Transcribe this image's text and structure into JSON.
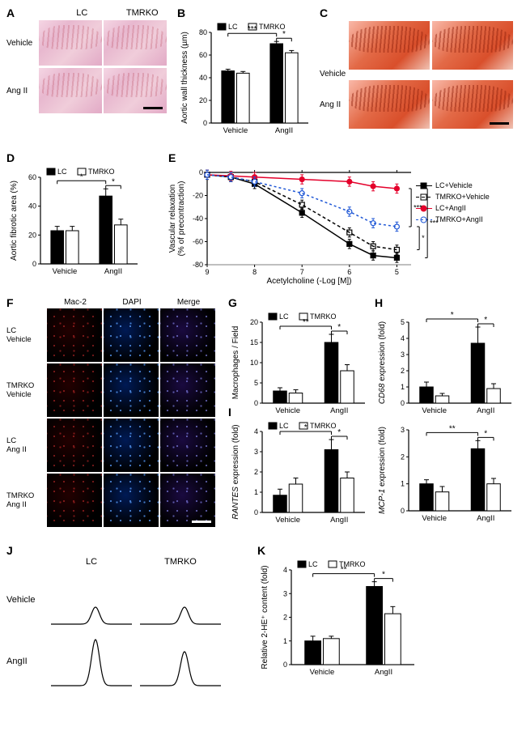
{
  "groups": {
    "lc": "LC",
    "tmrko": "TMRKO",
    "vehicle": "Vehicle",
    "angii": "AngII",
    "angii_sp": "Ang II"
  },
  "panelA": {
    "label": "A",
    "col1": "LC",
    "col2": "TMRKO",
    "row1": "Vehicle",
    "row2": "Ang II"
  },
  "panelB": {
    "label": "B",
    "ylabel": "Aortic wall thickness (µm)",
    "legend": {
      "lc": "LC",
      "tmrko": "TMRKO"
    },
    "xticks": [
      "Vehicle",
      "AngII"
    ],
    "ylim": [
      0,
      80
    ],
    "ytick_step": 20,
    "bars": {
      "lc_vehicle": 46,
      "lc_vehicle_err": 1.5,
      "tmrko_vehicle": 44,
      "tmrko_vehicle_err": 1.5,
      "lc_angii": 70,
      "lc_angii_err": 2,
      "tmrko_angii": 62,
      "tmrko_angii_err": 2
    },
    "sig": {
      "a": "***",
      "b": "*"
    },
    "colors": {
      "lc": "#000000",
      "tmrko": "#ffffff",
      "border": "#000000"
    }
  },
  "panelC": {
    "label": "C",
    "row1": "Vehicle",
    "row2": "Ang II"
  },
  "panelD": {
    "label": "D",
    "ylabel": "Aortic fibrotic area (%)",
    "legend": {
      "lc": "LC",
      "tmrko": "TMRKO"
    },
    "xticks": [
      "Vehicle",
      "AngII"
    ],
    "ylim": [
      0,
      60
    ],
    "ytick_step": 20,
    "bars": {
      "lc_vehicle": 23,
      "lc_vehicle_err": 3,
      "tmrko_vehicle": 23,
      "tmrko_vehicle_err": 3,
      "lc_angii": 47,
      "lc_angii_err": 5,
      "tmrko_angii": 27,
      "tmrko_angii_err": 4
    },
    "sig": {
      "a": "*",
      "b": "*"
    }
  },
  "panelE": {
    "label": "E",
    "ylabel": "Vascular relaxation\n(% of precontraction)",
    "xlabel": "Acetylcholine (-Log [M])",
    "xticks": [
      9,
      8,
      7,
      6,
      5
    ],
    "ylim": [
      0,
      -80
    ],
    "ytick_step": 20,
    "series": {
      "lc_vehicle": {
        "label": "LC+Vehicle",
        "color": "#000000",
        "dash": "none",
        "marker": "square-filled",
        "y": [
          -2,
          -4,
          -10,
          -35,
          -62,
          -72,
          -74
        ]
      },
      "tmrko_vehicle": {
        "label": "TMRKO+Vehicle",
        "color": "#000000",
        "dash": "4,3",
        "marker": "square-open",
        "y": [
          -2,
          -4,
          -8,
          -28,
          -52,
          -64,
          -67
        ]
      },
      "lc_angii": {
        "label": "LC+AngII",
        "color": "#e4002b",
        "dash": "none",
        "marker": "circle-filled",
        "y": [
          -2,
          -3,
          -4,
          -6,
          -8,
          -12,
          -14
        ]
      },
      "tmrko_angii": {
        "label": "TMRKO+AngII",
        "color": "#1f57d6",
        "dash": "3,3",
        "marker": "circle-open",
        "y": [
          -2,
          -4,
          -8,
          -18,
          -34,
          -44,
          -47
        ]
      }
    },
    "x": [
      9,
      8.5,
      8,
      7,
      6,
      5.5,
      5
    ],
    "err": 4,
    "sig": {
      "a": "***",
      "b": "***",
      "c": "*"
    }
  },
  "panelF": {
    "label": "F",
    "cols": [
      "Mac-2",
      "DAPI",
      "Merge"
    ],
    "rows": [
      "LC\nVehicle",
      "TMRKO\nVehicle",
      "LC\nAng II",
      "TMRKO\nAng II"
    ]
  },
  "panelG": {
    "label": "G",
    "ylabel": "Macrophages / Field",
    "xticks": [
      "Vehicle",
      "AngII"
    ],
    "legend": {
      "lc": "LC",
      "tmrko": "TMRKO"
    },
    "ylim": [
      0,
      20
    ],
    "ytick_step": 5,
    "bars": {
      "lc_vehicle": 3,
      "lc_vehicle_err": 0.8,
      "tmrko_vehicle": 2.5,
      "tmrko_vehicle_err": 0.8,
      "lc_angii": 15,
      "lc_angii_err": 2,
      "tmrko_angii": 8,
      "tmrko_angii_err": 1.5
    },
    "sig": {
      "a": "**",
      "b": "*"
    }
  },
  "panelH": {
    "label": "H",
    "ylabel": "CD68 expression (fold)",
    "ylabel_italic": "CD68",
    "xticks": [
      "Vehicle",
      "AngII"
    ],
    "ylim": [
      0,
      5
    ],
    "ytick_step": 1,
    "bars": {
      "lc_vehicle": 1.0,
      "lc_vehicle_err": 0.3,
      "tmrko_vehicle": 0.45,
      "tmrko_vehicle_err": 0.15,
      "lc_angii": 3.7,
      "lc_angii_err": 1.0,
      "tmrko_angii": 0.9,
      "tmrko_angii_err": 0.3
    },
    "sig": {
      "a": "*",
      "b": "*"
    }
  },
  "panelI_left": {
    "label": "I",
    "ylabel": "RANTES expression (fold)",
    "ylabel_italic": "RANTES",
    "xticks": [
      "Vehicle",
      "AngII"
    ],
    "legend": {
      "lc": "LC",
      "tmrko": "TMRKO"
    },
    "ylim": [
      0,
      4
    ],
    "ytick_step": 1,
    "bars": {
      "lc_vehicle": 0.85,
      "lc_vehicle_err": 0.3,
      "tmrko_vehicle": 1.4,
      "tmrko_vehicle_err": 0.3,
      "lc_angii": 3.1,
      "lc_angii_err": 0.5,
      "tmrko_angii": 1.7,
      "tmrko_angii_err": 0.3
    },
    "sig": {
      "a": "*",
      "b": "*"
    }
  },
  "panelI_right": {
    "ylabel": "MCP-1 expression (fold)",
    "ylabel_italic": "MCP-1",
    "xticks": [
      "Vehicle",
      "AngII"
    ],
    "ylim": [
      0,
      3
    ],
    "ytick_step": 1,
    "bars": {
      "lc_vehicle": 1.0,
      "lc_vehicle_err": 0.15,
      "tmrko_vehicle": 0.7,
      "tmrko_vehicle_err": 0.2,
      "lc_angii": 2.3,
      "lc_angii_err": 0.3,
      "tmrko_angii": 1.0,
      "tmrko_angii_err": 0.2
    },
    "sig": {
      "a": "**",
      "b": "*"
    }
  },
  "panelJ": {
    "label": "J",
    "cols": [
      "LC",
      "TMRKO"
    ],
    "rows": [
      "Vehicle",
      "AngII"
    ],
    "peaks": {
      "lc_vehicle": 0.35,
      "tmrko_vehicle": 0.35,
      "lc_angii": 0.95,
      "tmrko_angii": 0.7
    }
  },
  "panelK": {
    "label": "K",
    "ylabel": "Relative 2-HE⁺ content (fold)",
    "xticks": [
      "Vehicle",
      "AngII"
    ],
    "legend": {
      "lc": "LC",
      "tmrko": "TMRKO"
    },
    "ylim": [
      0,
      4
    ],
    "ytick_step": 1,
    "bars": {
      "lc_vehicle": 1.0,
      "lc_vehicle_err": 0.2,
      "tmrko_vehicle": 1.1,
      "tmrko_vehicle_err": 0.1,
      "lc_angii": 3.3,
      "lc_angii_err": 0.2,
      "tmrko_angii": 2.15,
      "tmrko_angii_err": 0.3
    },
    "sig": {
      "a": "**",
      "b": "*"
    }
  },
  "style": {
    "bar_lc": "#000000",
    "bar_tmrko": "#ffffff",
    "axis_color": "#000000",
    "tick_fontsize": 9,
    "label_fontsize": 10,
    "panel_label_fontsize": 14
  }
}
